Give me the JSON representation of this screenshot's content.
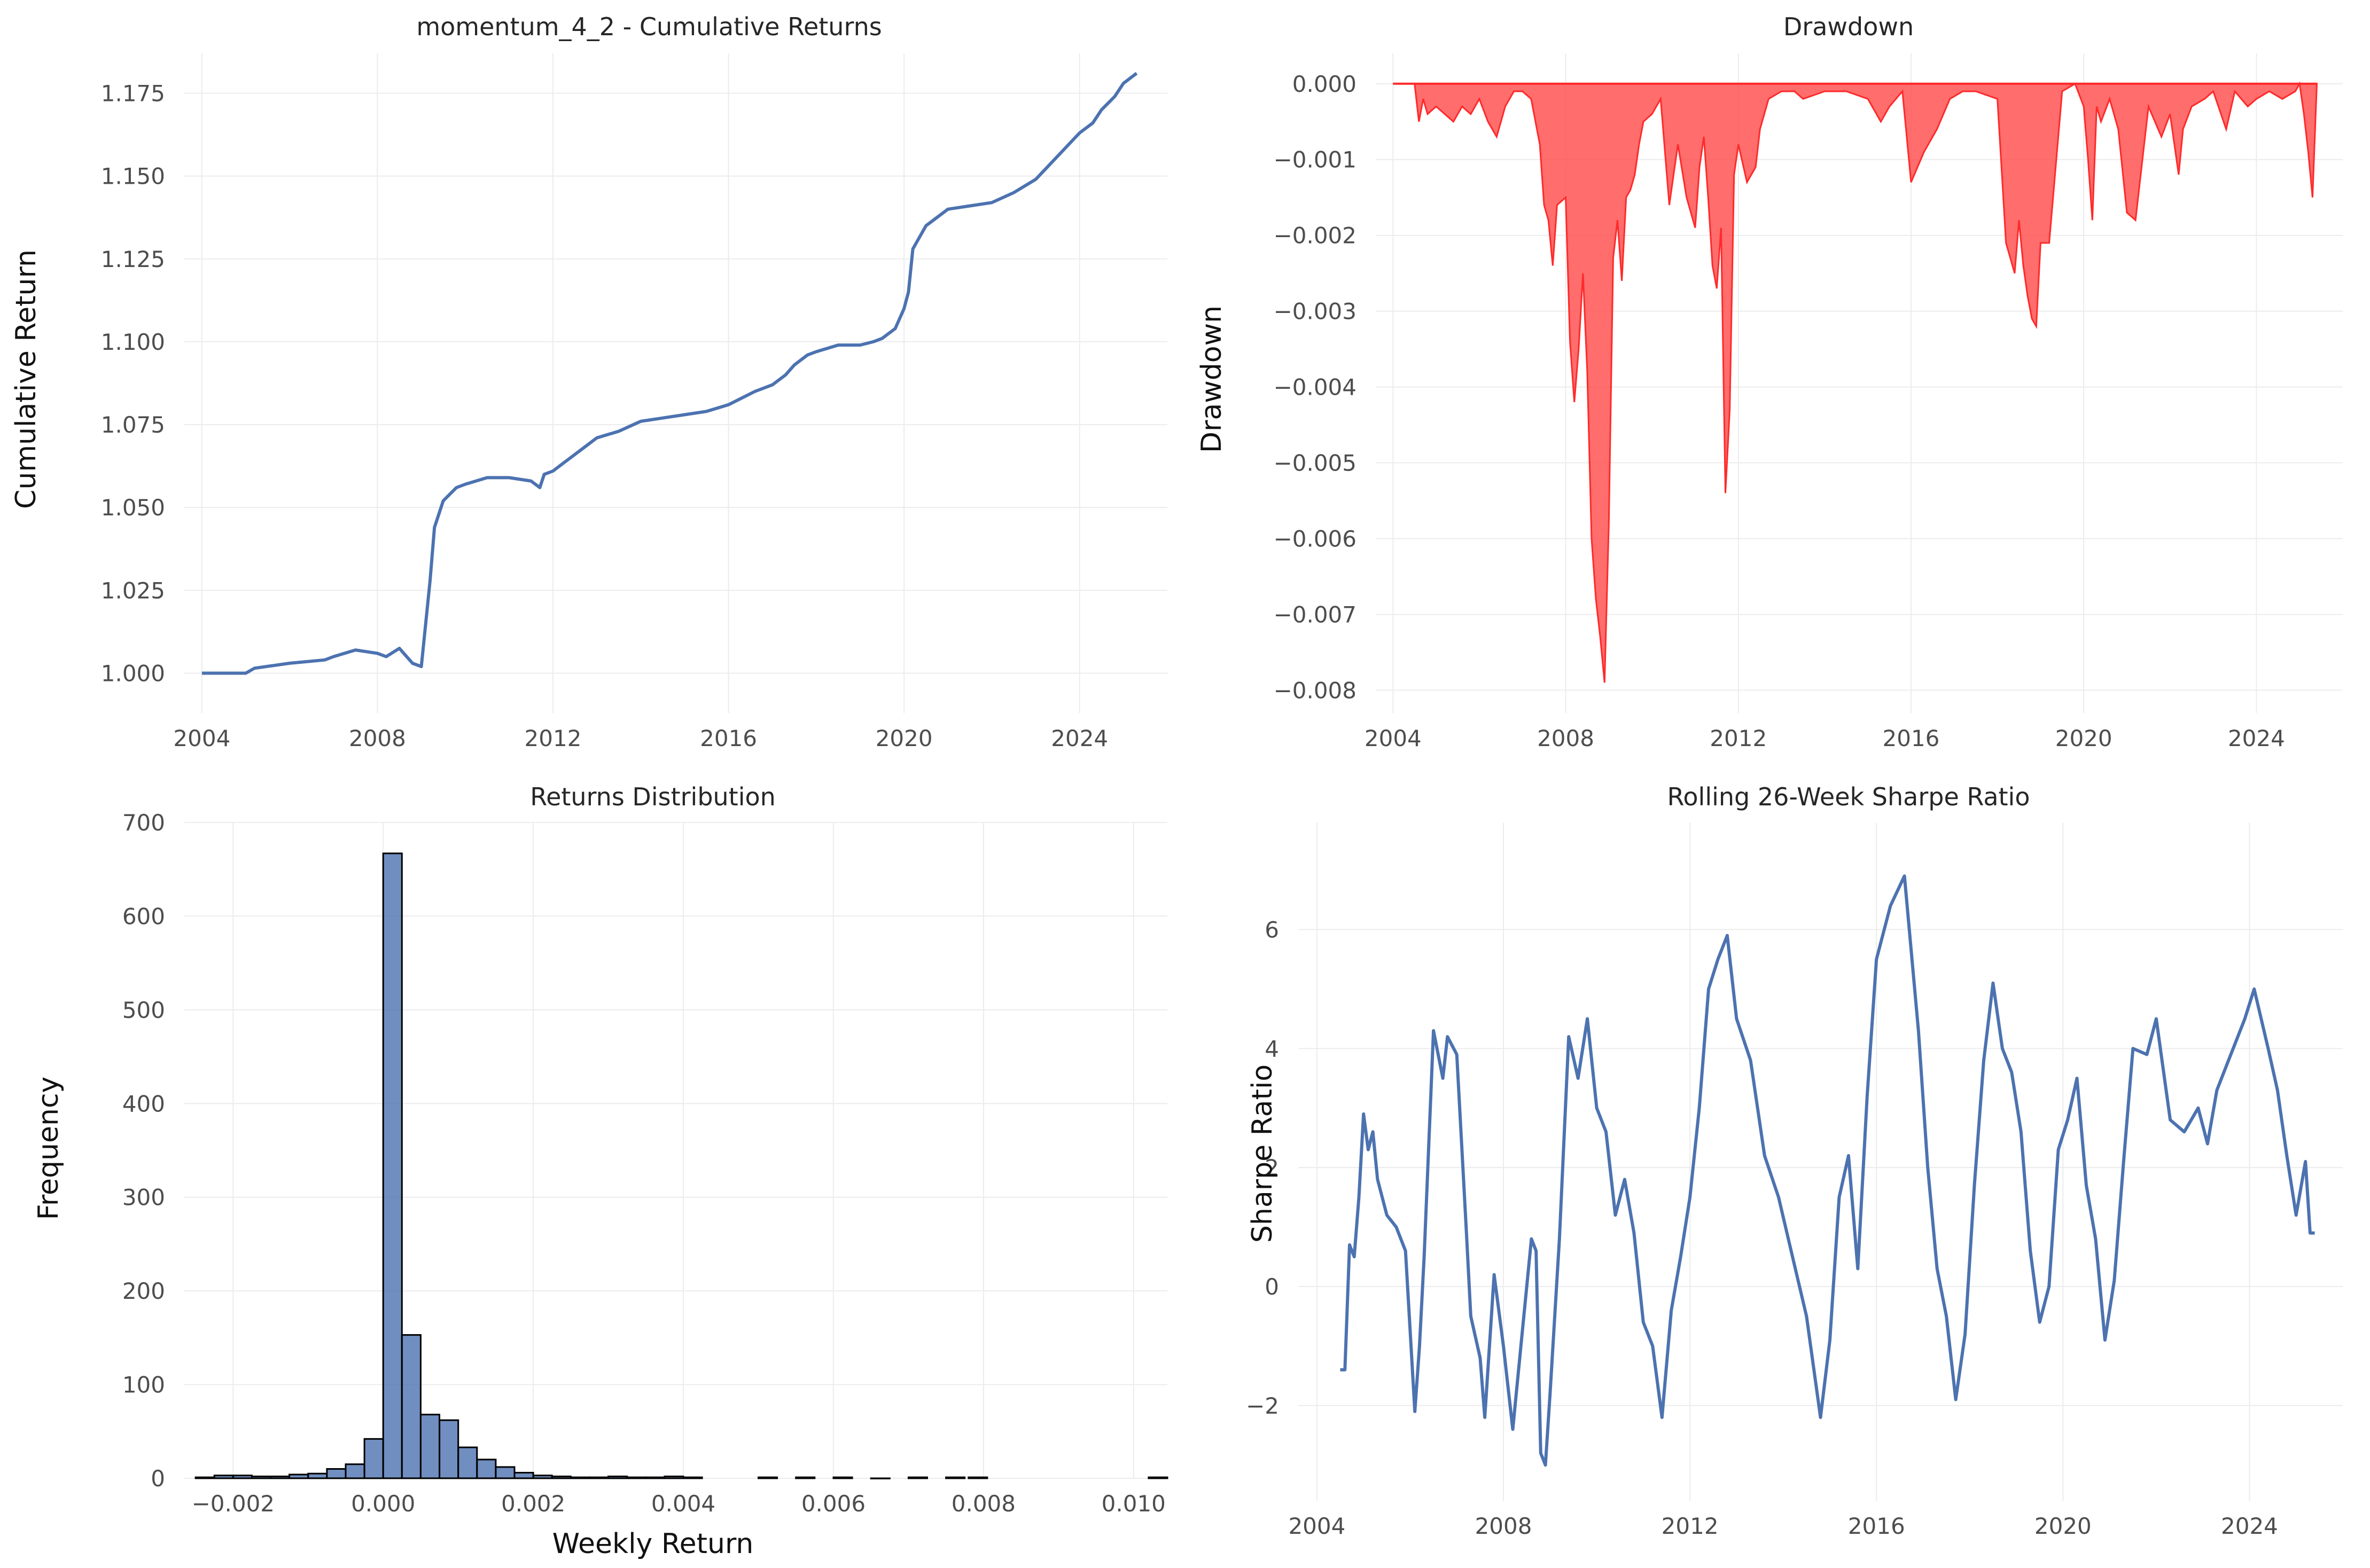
{
  "figure": {
    "background": "#ffffff",
    "grid_color": "#ececec"
  },
  "chart_data": [
    {
      "id": "cumulative",
      "type": "line",
      "title": "momentum_4_2 - Cumulative Returns",
      "xlabel": "",
      "ylabel": "Cumulative Return",
      "xlim": [
        2003.6,
        2026.0
      ],
      "ylim": [
        0.988,
        1.187
      ],
      "xticks": [
        2004,
        2008,
        2012,
        2016,
        2020,
        2024
      ],
      "yticks": [
        1.0,
        1.025,
        1.05,
        1.075,
        1.1,
        1.125,
        1.15,
        1.175
      ],
      "ytick_decimals": 3,
      "grid": true,
      "color": "#4c72b0",
      "x": [
        2004.0,
        2005.0,
        2005.2,
        2006.0,
        2006.8,
        2007.0,
        2007.5,
        2008.0,
        2008.2,
        2008.5,
        2008.8,
        2009.0,
        2009.1,
        2009.2,
        2009.3,
        2009.5,
        2009.8,
        2010.0,
        2010.5,
        2011.0,
        2011.5,
        2011.7,
        2011.8,
        2012.0,
        2012.2,
        2012.5,
        2012.8,
        2013.0,
        2013.5,
        2014.0,
        2014.5,
        2015.0,
        2015.5,
        2016.0,
        2016.3,
        2016.6,
        2017.0,
        2017.3,
        2017.5,
        2017.8,
        2018.0,
        2018.5,
        2019.0,
        2019.3,
        2019.5,
        2019.8,
        2020.0,
        2020.1,
        2020.2,
        2020.5,
        2021.0,
        2021.5,
        2022.0,
        2022.5,
        2023.0,
        2023.5,
        2024.0,
        2024.3,
        2024.5,
        2024.8,
        2025.0,
        2025.3
      ],
      "y": [
        1.0,
        1.0,
        1.0015,
        1.003,
        1.004,
        1.005,
        1.007,
        1.006,
        1.005,
        1.0075,
        1.003,
        1.002,
        1.015,
        1.028,
        1.044,
        1.052,
        1.056,
        1.057,
        1.059,
        1.059,
        1.058,
        1.056,
        1.06,
        1.061,
        1.063,
        1.066,
        1.069,
        1.071,
        1.073,
        1.076,
        1.077,
        1.078,
        1.079,
        1.081,
        1.083,
        1.085,
        1.087,
        1.09,
        1.093,
        1.096,
        1.097,
        1.099,
        1.099,
        1.1,
        1.101,
        1.104,
        1.11,
        1.115,
        1.128,
        1.135,
        1.14,
        1.141,
        1.142,
        1.145,
        1.149,
        1.156,
        1.163,
        1.166,
        1.17,
        1.174,
        1.178,
        1.181
      ]
    },
    {
      "id": "drawdown",
      "type": "area",
      "title": "Drawdown",
      "xlabel": "",
      "ylabel": "Drawdown",
      "xlim": [
        2003.6,
        2026.0
      ],
      "ylim": [
        -0.0083,
        0.0004
      ],
      "xticks": [
        2004,
        2008,
        2012,
        2016,
        2020,
        2024
      ],
      "yticks": [
        0.0,
        -0.001,
        -0.002,
        -0.003,
        -0.004,
        -0.005,
        -0.006,
        -0.007,
        -0.008
      ],
      "ytick_decimals": 3,
      "grid": true,
      "color": "#ff4d4d",
      "x": [
        2004.0,
        2004.5,
        2004.6,
        2004.7,
        2004.8,
        2005.0,
        2005.2,
        2005.4,
        2005.6,
        2005.8,
        2006.0,
        2006.2,
        2006.4,
        2006.6,
        2006.8,
        2007.0,
        2007.2,
        2007.4,
        2007.5,
        2007.6,
        2007.7,
        2007.8,
        2008.0,
        2008.1,
        2008.2,
        2008.3,
        2008.4,
        2008.5,
        2008.6,
        2008.7,
        2008.8,
        2008.9,
        2009.0,
        2009.1,
        2009.2,
        2009.3,
        2009.4,
        2009.5,
        2009.6,
        2009.7,
        2009.8,
        2010.0,
        2010.2,
        2010.4,
        2010.5,
        2010.6,
        2010.8,
        2011.0,
        2011.1,
        2011.2,
        2011.3,
        2011.4,
        2011.5,
        2011.6,
        2011.7,
        2011.8,
        2011.9,
        2012.0,
        2012.2,
        2012.4,
        2012.5,
        2012.7,
        2013.0,
        2013.3,
        2013.5,
        2014.0,
        2014.5,
        2015.0,
        2015.3,
        2015.5,
        2015.8,
        2016.0,
        2016.3,
        2016.6,
        2016.9,
        2017.2,
        2017.5,
        2018.0,
        2018.2,
        2018.4,
        2018.5,
        2018.6,
        2018.7,
        2018.8,
        2018.9,
        2019.0,
        2019.2,
        2019.5,
        2019.8,
        2020.0,
        2020.1,
        2020.2,
        2020.3,
        2020.4,
        2020.6,
        2020.8,
        2021.0,
        2021.2,
        2021.5,
        2021.8,
        2022.0,
        2022.2,
        2022.3,
        2022.5,
        2022.8,
        2023.0,
        2023.3,
        2023.5,
        2023.8,
        2024.0,
        2024.3,
        2024.6,
        2024.9,
        2025.0,
        2025.1,
        2025.2,
        2025.3,
        2025.4
      ],
      "y": [
        0.0,
        0.0,
        -0.0005,
        -0.0002,
        -0.0004,
        -0.0003,
        -0.0004,
        -0.0005,
        -0.0003,
        -0.0004,
        -0.0002,
        -0.0005,
        -0.0007,
        -0.0003,
        -0.0001,
        -0.0001,
        -0.0002,
        -0.0008,
        -0.0016,
        -0.0018,
        -0.0024,
        -0.0016,
        -0.0015,
        -0.0034,
        -0.0042,
        -0.0035,
        -0.0025,
        -0.0038,
        -0.006,
        -0.0068,
        -0.0073,
        -0.0079,
        -0.0058,
        -0.0023,
        -0.0018,
        -0.0026,
        -0.0015,
        -0.0014,
        -0.0012,
        -0.0008,
        -0.0005,
        -0.0004,
        -0.0002,
        -0.0016,
        -0.0012,
        -0.0008,
        -0.0015,
        -0.0019,
        -0.0011,
        -0.0007,
        -0.0015,
        -0.0024,
        -0.0027,
        -0.0019,
        -0.0054,
        -0.0043,
        -0.0012,
        -0.0008,
        -0.0013,
        -0.0011,
        -0.0006,
        -0.0002,
        -0.0001,
        -0.0001,
        -0.0002,
        -0.0001,
        -0.0001,
        -0.0002,
        -0.0005,
        -0.0003,
        -0.0001,
        -0.0013,
        -0.0009,
        -0.0006,
        -0.0002,
        -0.0001,
        -0.0001,
        -0.0002,
        -0.0021,
        -0.0025,
        -0.0018,
        -0.0024,
        -0.0028,
        -0.0031,
        -0.0032,
        -0.0021,
        -0.0021,
        -0.0001,
        -0.0,
        -0.0003,
        -0.001,
        -0.0018,
        -0.0003,
        -0.0005,
        -0.0002,
        -0.0006,
        -0.0017,
        -0.0018,
        -0.0003,
        -0.0007,
        -0.0004,
        -0.0012,
        -0.0006,
        -0.0003,
        -0.0002,
        -0.0001,
        -0.0006,
        -0.0001,
        -0.0003,
        -0.0002,
        -0.0001,
        -0.0002,
        -0.0001,
        -0.0,
        -0.0004,
        -0.0009,
        -0.0015,
        0.0
      ]
    },
    {
      "id": "distribution",
      "type": "bar",
      "title": "Returns Distribution",
      "xlabel": "Weekly Return",
      "ylabel": "Frequency",
      "xlim": [
        -0.00265,
        0.01045
      ],
      "ylim": [
        0,
        700
      ],
      "xticks": [
        -0.002,
        0.0,
        0.002,
        0.004,
        0.006,
        0.008,
        0.01
      ],
      "xtick_decimals": 3,
      "yticks": [
        0,
        100,
        200,
        300,
        400,
        500,
        600,
        700
      ],
      "ytick_decimals": 0,
      "grid": true,
      "color": "#4c72b0",
      "bin_width": 0.00025,
      "bin_starts": [
        -0.0025,
        -0.00225,
        -0.002,
        -0.00175,
        -0.0015,
        -0.00125,
        -0.001,
        -0.00075,
        -0.0005,
        -0.00025,
        0.0,
        0.00025,
        0.0005,
        0.00075,
        0.001,
        0.00125,
        0.0015,
        0.00175,
        0.002,
        0.00225,
        0.0025,
        0.00275,
        0.003,
        0.00325,
        0.0035,
        0.00375,
        0.004,
        0.005,
        0.0055,
        0.006,
        0.0065,
        0.007,
        0.0075,
        0.0078,
        0.0102
      ],
      "values": [
        1,
        3,
        3,
        2,
        2,
        4,
        5,
        10,
        15,
        42,
        667,
        153,
        68,
        62,
        33,
        20,
        12,
        6,
        3,
        2,
        1,
        1,
        2,
        1,
        1,
        2,
        1,
        1,
        1,
        1,
        0,
        1,
        1,
        1,
        1
      ]
    },
    {
      "id": "sharpe",
      "type": "line",
      "title": "Rolling 26-Week Sharpe Ratio",
      "xlabel": "",
      "ylabel": "Sharpe Ratio",
      "xlim": [
        2003.6,
        2026.0
      ],
      "ylim": [
        -3.6,
        7.8
      ],
      "xticks": [
        2004,
        2008,
        2012,
        2016,
        2020,
        2024
      ],
      "yticks": [
        -2,
        0,
        2,
        4,
        6
      ],
      "ytick_decimals": 0,
      "grid": true,
      "color": "#4c72b0",
      "x": [
        2004.5,
        2004.6,
        2004.7,
        2004.8,
        2004.9,
        2005.0,
        2005.1,
        2005.2,
        2005.3,
        2005.5,
        2005.7,
        2005.9,
        2006.1,
        2006.2,
        2006.3,
        2006.5,
        2006.7,
        2006.8,
        2007.0,
        2007.2,
        2007.3,
        2007.5,
        2007.6,
        2007.8,
        2008.0,
        2008.2,
        2008.4,
        2008.6,
        2008.7,
        2008.8,
        2008.9,
        2009.0,
        2009.2,
        2009.4,
        2009.6,
        2009.8,
        2010.0,
        2010.2,
        2010.4,
        2010.6,
        2010.8,
        2011.0,
        2011.2,
        2011.4,
        2011.6,
        2011.8,
        2012.0,
        2012.2,
        2012.4,
        2012.6,
        2012.8,
        2013.0,
        2013.3,
        2013.6,
        2013.9,
        2014.2,
        2014.5,
        2014.8,
        2015.0,
        2015.2,
        2015.4,
        2015.6,
        2015.8,
        2016.0,
        2016.3,
        2016.6,
        2016.9,
        2017.1,
        2017.3,
        2017.5,
        2017.7,
        2017.9,
        2018.1,
        2018.3,
        2018.5,
        2018.7,
        2018.9,
        2019.1,
        2019.3,
        2019.5,
        2019.7,
        2019.9,
        2020.1,
        2020.3,
        2020.5,
        2020.7,
        2020.9,
        2021.1,
        2021.3,
        2021.5,
        2021.8,
        2022.0,
        2022.3,
        2022.6,
        2022.9,
        2023.1,
        2023.3,
        2023.6,
        2023.9,
        2024.1,
        2024.4,
        2024.6,
        2024.8,
        2025.0,
        2025.2,
        2025.3,
        2025.4
      ],
      "y": [
        -1.4,
        -1.4,
        0.7,
        0.5,
        1.5,
        2.9,
        2.3,
        2.6,
        1.8,
        1.2,
        1.0,
        0.6,
        -2.1,
        -1.0,
        0.5,
        4.3,
        3.5,
        4.2,
        3.9,
        1.0,
        -0.5,
        -1.2,
        -2.2,
        0.2,
        -1.0,
        -2.4,
        -0.8,
        0.8,
        0.6,
        -2.8,
        -3.0,
        -1.8,
        0.8,
        4.2,
        3.5,
        4.5,
        3.0,
        2.6,
        1.2,
        1.8,
        0.9,
        -0.6,
        -1.0,
        -2.2,
        -0.4,
        0.5,
        1.5,
        3.0,
        5.0,
        5.5,
        5.9,
        4.5,
        3.8,
        2.2,
        1.5,
        0.5,
        -0.5,
        -2.2,
        -0.9,
        1.5,
        2.2,
        0.3,
        3.2,
        5.5,
        6.4,
        6.9,
        4.3,
        2.0,
        0.3,
        -0.5,
        -1.9,
        -0.8,
        1.7,
        3.8,
        5.1,
        4.0,
        3.6,
        2.6,
        0.6,
        -0.6,
        0.0,
        2.3,
        2.8,
        3.5,
        1.7,
        0.8,
        -0.9,
        0.1,
        2.1,
        4.0,
        3.9,
        4.5,
        2.8,
        2.6,
        3.0,
        2.4,
        3.3,
        3.9,
        4.5,
        5.0,
        4.0,
        3.3,
        2.2,
        1.2,
        2.1,
        0.9,
        0.9
      ]
    }
  ]
}
